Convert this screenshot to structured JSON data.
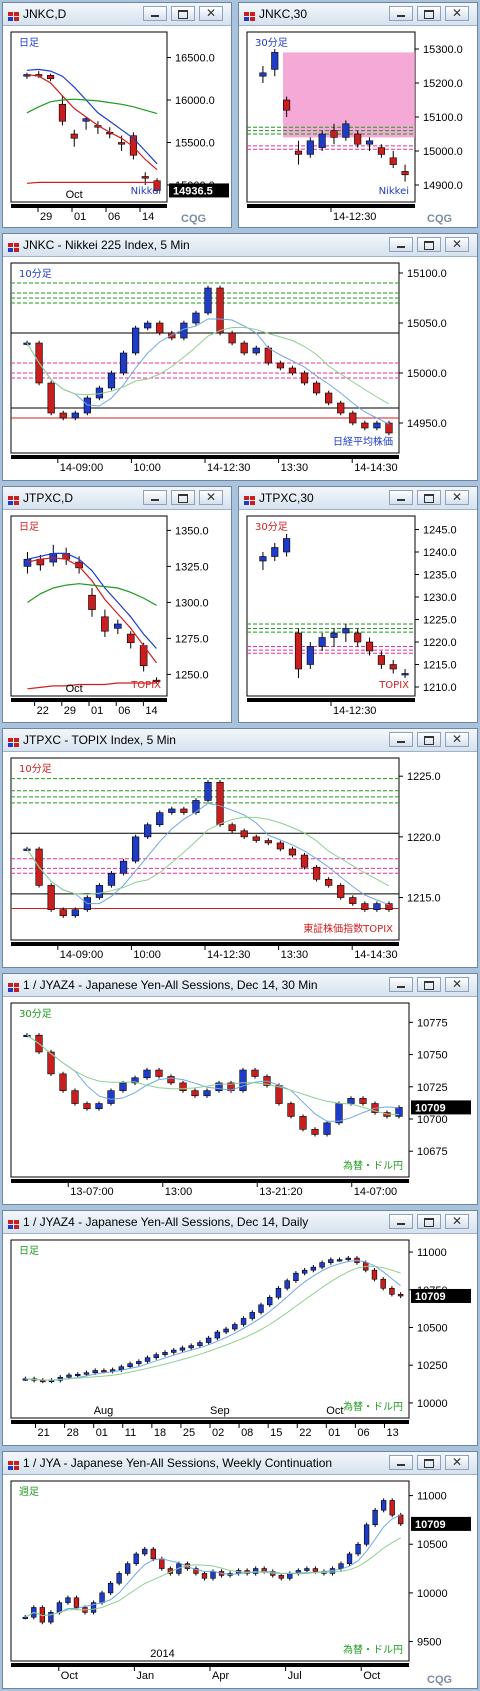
{
  "colors": {
    "up": "#1f3cc8",
    "down": "#c81e1e",
    "bg": "#ffffff",
    "green": "#1e9a1e",
    "blue": "#1f3cc8",
    "red": "#d21e1e",
    "pink": "#e8309a",
    "magenta_box": "#f08cc8",
    "black": "#000000",
    "gray": "#8a8a8a",
    "lightblue": "#6fa8e6",
    "lightgreen": "#8fd08f"
  },
  "cqg_logo": "CQG",
  "panels": [
    {
      "id": "p1",
      "title": "JNKC,D",
      "inner_label": "日足",
      "inner_label_color": "#1f3cc8",
      "bottom_label": "Nikkei",
      "bottom_label_color": "#1f3cc8",
      "yticks": [
        "16500.0",
        "16000.0",
        "15500.0",
        "15000.0"
      ],
      "price_tag": "14936.5",
      "xticks": [
        "29",
        "01",
        "06",
        "14"
      ],
      "xtick_upper": "Oct",
      "chart_data": {
        "type": "candlestick",
        "ylim": [
          14800,
          16800
        ],
        "candles": [
          [
            16280,
            16320,
            16250,
            16300
          ],
          [
            16300,
            16340,
            16260,
            16280
          ],
          [
            16290,
            16310,
            16220,
            16250
          ],
          [
            15950,
            16050,
            15700,
            15750
          ],
          [
            15600,
            15650,
            15450,
            15550
          ],
          [
            15750,
            15800,
            15650,
            15780
          ],
          [
            15700,
            15750,
            15600,
            15680
          ],
          [
            15620,
            15680,
            15550,
            15600
          ],
          [
            15500,
            15580,
            15400,
            15480
          ],
          [
            15580,
            15620,
            15300,
            15350
          ],
          [
            15100,
            15150,
            15000,
            15080
          ],
          [
            15050,
            15080,
            14900,
            14936
          ]
        ],
        "lines": [
          {
            "color": "#1f3cc8",
            "values": [
              16350,
              16360,
              16340,
              16280,
              16150,
              16000,
              15850,
              15750,
              15650,
              15550,
              15400,
              15250
            ]
          },
          {
            "color": "#d21e1e",
            "values": [
              16300,
              16280,
              16200,
              16050,
              15900,
              15800,
              15700,
              15620,
              15550,
              15450,
              15300,
              15180
            ]
          },
          {
            "color": "#1e9a1e",
            "values": [
              15850,
              15920,
              15980,
              16000,
              16010,
              16000,
              15990,
              15970,
              15950,
              15920,
              15880,
              15840
            ]
          },
          {
            "color": "#d21e1e",
            "values": [
              15020,
              15030,
              15030,
              15030,
              15030,
              15030,
              15030,
              15030,
              15030,
              15030,
              15030,
              15030
            ]
          }
        ]
      }
    },
    {
      "id": "p2",
      "title": "JNKC,30",
      "inner_label": "30分足",
      "inner_label_color": "#1f3cc8",
      "bottom_label": "Nikkei",
      "bottom_label_color": "#1f3cc8",
      "yticks": [
        "15300.0",
        "15200.0",
        "15100.0",
        "15000.0",
        "14900.0"
      ],
      "price_tag": "",
      "xticks": [
        "14-12:30"
      ],
      "xtick_upper": "",
      "chart_data": {
        "type": "candlestick",
        "ylim": [
          14850,
          15350
        ],
        "candles": [
          [
            15220,
            15250,
            15200,
            15230
          ],
          [
            15240,
            15300,
            15220,
            15290
          ],
          [
            15150,
            15160,
            15100,
            15120
          ],
          [
            15000,
            15030,
            14960,
            14990
          ],
          [
            14990,
            15040,
            14980,
            15030
          ],
          [
            15010,
            15060,
            15000,
            15050
          ],
          [
            15060,
            15080,
            15020,
            15040
          ],
          [
            15040,
            15090,
            15030,
            15080
          ],
          [
            15050,
            15060,
            15010,
            15020
          ],
          [
            15020,
            15040,
            15000,
            15030
          ],
          [
            15010,
            15020,
            14980,
            14990
          ],
          [
            14980,
            15000,
            14950,
            14960
          ],
          [
            14940,
            14960,
            14910,
            14930
          ]
        ],
        "levels": [
          {
            "y": 15070,
            "color": "#1e9a1e"
          },
          {
            "y": 15060,
            "color": "#1e9a1e"
          },
          {
            "y": 15050,
            "color": "#1e9a1e"
          },
          {
            "y": 15015,
            "color": "#e8309a"
          },
          {
            "y": 15005,
            "color": "#e8309a"
          }
        ],
        "box": {
          "y0": 15040,
          "y1": 15290
        }
      }
    },
    {
      "id": "p3",
      "title": "JNKC - Nikkei 225 Index, 5 Min",
      "inner_label": "10分足",
      "inner_label_color": "#1f3cc8",
      "bottom_label": "日経平均株価",
      "bottom_label_color": "#1f3cc8",
      "yticks": [
        "15100.0",
        "15050.0",
        "15000.0",
        "14950.0"
      ],
      "price_tag": "",
      "xticks": [
        "14-09:00",
        "10:00",
        "14-12:30",
        "13:30",
        "14-14:30"
      ],
      "xtick_upper": "",
      "chart_data": {
        "type": "candlestick",
        "ylim": [
          14920,
          15110
        ],
        "levels": [
          {
            "y": 15090,
            "color": "#1e9a1e"
          },
          {
            "y": 15080,
            "color": "#1e9a1e"
          },
          {
            "y": 15075,
            "color": "#1e9a1e"
          },
          {
            "y": 15070,
            "color": "#1e9a1e"
          },
          {
            "y": 15040,
            "color": "#000000"
          },
          {
            "y": 15010,
            "color": "#e8309a"
          },
          {
            "y": 15000,
            "color": "#e8309a"
          },
          {
            "y": 14995,
            "color": "#e8309a"
          },
          {
            "y": 14965,
            "color": "#000000"
          },
          {
            "y": 14955,
            "color": "#d21e1e"
          }
        ],
        "series": [
          15030,
          14990,
          14960,
          14955,
          14960,
          14975,
          14985,
          15000,
          15020,
          15045,
          15050,
          15040,
          15035,
          15050,
          15060,
          15085,
          15040,
          15030,
          15020,
          15025,
          15010,
          15005,
          15000,
          14990,
          14980,
          14970,
          14960,
          14950,
          14945,
          14950,
          14940
        ]
      }
    },
    {
      "id": "p4",
      "title": "JTPXC,D",
      "inner_label": "日足",
      "inner_label_color": "#d21e1e",
      "bottom_label": "TOPIX",
      "bottom_label_color": "#d21e1e",
      "yticks": [
        "1350.0",
        "1325.0",
        "1300.0",
        "1275.0",
        "1250.0"
      ],
      "price_tag": "",
      "xticks": [
        "22",
        "29",
        "01",
        "06",
        "14"
      ],
      "xtick_upper": "Oct",
      "chart_data": {
        "type": "candlestick",
        "ylim": [
          1235,
          1360
        ],
        "candles": [
          [
            1325,
            1335,
            1320,
            1330
          ],
          [
            1330,
            1333,
            1322,
            1326
          ],
          [
            1328,
            1340,
            1325,
            1334
          ],
          [
            1334,
            1338,
            1326,
            1330
          ],
          [
            1328,
            1332,
            1320,
            1324
          ],
          [
            1305,
            1310,
            1290,
            1295
          ],
          [
            1290,
            1295,
            1276,
            1280
          ],
          [
            1282,
            1288,
            1278,
            1285
          ],
          [
            1278,
            1280,
            1268,
            1272
          ],
          [
            1270,
            1272,
            1252,
            1256
          ],
          [
            1246,
            1248,
            1244,
            1245
          ]
        ],
        "lines": [
          {
            "color": "#1f3cc8",
            "values": [
              1330,
              1332,
              1334,
              1334,
              1330,
              1322,
              1310,
              1300,
              1290,
              1278,
              1268
            ]
          },
          {
            "color": "#d21e1e",
            "values": [
              1328,
              1330,
              1331,
              1330,
              1325,
              1315,
              1302,
              1292,
              1282,
              1270,
              1258
            ]
          },
          {
            "color": "#1e9a1e",
            "values": [
              1300,
              1306,
              1310,
              1312,
              1313,
              1312,
              1311,
              1310,
              1307,
              1303,
              1298
            ]
          },
          {
            "color": "#d21e1e",
            "values": [
              1240,
              1241,
              1242,
              1242,
              1243,
              1243,
              1243,
              1244,
              1244,
              1244,
              1244
            ]
          }
        ]
      }
    },
    {
      "id": "p5",
      "title": "JTPXC,30",
      "inner_label": "30分足",
      "inner_label_color": "#d21e1e",
      "bottom_label": "TOPIX",
      "bottom_label_color": "#d21e1e",
      "yticks": [
        "1245.0",
        "1240.0",
        "1235.0",
        "1230.0",
        "1225.0",
        "1220.0",
        "1215.0",
        "1210.0"
      ],
      "price_tag": "",
      "xticks": [
        "14-12:30"
      ],
      "xtick_upper": "",
      "chart_data": {
        "type": "candlestick",
        "ylim": [
          1208,
          1248
        ],
        "candles": [
          [
            1238,
            1240,
            1236,
            1239
          ],
          [
            1239,
            1242,
            1238,
            1241
          ],
          [
            1240,
            1244,
            1239,
            1243
          ],
          [
            1222,
            1223,
            1212,
            1214
          ],
          [
            1215,
            1220,
            1214,
            1219
          ],
          [
            1219,
            1222,
            1218,
            1221
          ],
          [
            1221,
            1223,
            1219,
            1222
          ],
          [
            1222,
            1224,
            1220,
            1223
          ],
          [
            1222,
            1223,
            1219,
            1220
          ],
          [
            1220,
            1221,
            1217,
            1218
          ],
          [
            1217,
            1218,
            1214,
            1215
          ],
          [
            1215,
            1216,
            1213,
            1214
          ],
          [
            1213,
            1214,
            1212,
            1213
          ]
        ],
        "levels": [
          {
            "y": 1224,
            "color": "#1e9a1e"
          },
          {
            "y": 1223,
            "color": "#1e9a1e"
          },
          {
            "y": 1222.2,
            "color": "#1e9a1e"
          },
          {
            "y": 1219,
            "color": "#e8309a"
          },
          {
            "y": 1218.2,
            "color": "#e8309a"
          },
          {
            "y": 1217.5,
            "color": "#e8309a"
          }
        ]
      }
    },
    {
      "id": "p6",
      "title": "JTPXC - TOPIX Index, 5 Min",
      "inner_label": "10分足",
      "inner_label_color": "#d21e1e",
      "bottom_label": "東証株価指数TOPIX",
      "bottom_label_color": "#d21e1e",
      "yticks": [
        "1225.0",
        "1220.0",
        "1215.0"
      ],
      "price_tag": "",
      "xticks": [
        "14-09:00",
        "10:00",
        "14-12:30",
        "13:30",
        "14-14:30"
      ],
      "xtick_upper": "",
      "chart_data": {
        "type": "candlestick",
        "ylim": [
          1211.5,
          1226.5
        ],
        "levels": [
          {
            "y": 1224.8,
            "color": "#1e9a1e"
          },
          {
            "y": 1223.8,
            "color": "#1e9a1e"
          },
          {
            "y": 1223.3,
            "color": "#1e9a1e"
          },
          {
            "y": 1222.8,
            "color": "#1e9a1e"
          },
          {
            "y": 1220.3,
            "color": "#000000"
          },
          {
            "y": 1218.2,
            "color": "#e8309a"
          },
          {
            "y": 1217.4,
            "color": "#e8309a"
          },
          {
            "y": 1217.0,
            "color": "#e8309a"
          },
          {
            "y": 1215.3,
            "color": "#000000"
          },
          {
            "y": 1214.1,
            "color": "#d21e1e"
          }
        ],
        "series": [
          1219,
          1216,
          1214,
          1213.5,
          1214,
          1215,
          1216,
          1217,
          1218,
          1220,
          1221,
          1222,
          1222.3,
          1222,
          1223,
          1224.5,
          1221,
          1220.5,
          1220,
          1219.7,
          1219.5,
          1219,
          1218.5,
          1217.5,
          1216.5,
          1216,
          1215,
          1214.5,
          1214,
          1214.5,
          1214
        ]
      }
    },
    {
      "id": "p7",
      "title": "1 / JYAZ4 - Japanese Yen-All Sessions, Dec 14, 30 Min",
      "inner_label": "30分足",
      "inner_label_color": "#1e9a1e",
      "bottom_label": "為替・ドル円",
      "bottom_label_color": "#1e9a1e",
      "yticks": [
        "10775",
        "10750",
        "10725",
        "10700",
        "10675"
      ],
      "price_tag": "10709",
      "xticks": [
        "13-07:00",
        "13:00",
        "13-21:20",
        "14-07:00"
      ],
      "xtick_upper": "",
      "chart_data": {
        "type": "candlestick",
        "ylim": [
          10655,
          10790
        ],
        "series": [
          10765,
          10752,
          10735,
          10722,
          10712,
          10708,
          10712,
          10722,
          10728,
          10732,
          10738,
          10733,
          10728,
          10722,
          10718,
          10722,
          10728,
          10722,
          10738,
          10733,
          10726,
          10712,
          10702,
          10692,
          10688,
          10697,
          10712,
          10716,
          10712,
          10705,
          10702,
          10709
        ]
      }
    },
    {
      "id": "p8",
      "title": "1 / JYAZ4 - Japanese Yen-All Sessions, Dec 14, Daily",
      "inner_label": "日足",
      "inner_label_color": "#1e9a1e",
      "bottom_label": "為替・ドル円",
      "bottom_label_color": "#1e9a1e",
      "yticks": [
        "11000",
        "10750",
        "10500",
        "10250",
        "10000"
      ],
      "price_tag": "10709",
      "xticks": [
        "21",
        "28",
        "01",
        "11",
        "18",
        "25",
        "02",
        "08",
        "15",
        "22",
        "01",
        "06",
        "13"
      ],
      "xtick_upper_list": [
        {
          "t": "Aug",
          "i": 2
        },
        {
          "t": "Sep",
          "i": 6
        },
        {
          "t": "Oct",
          "i": 10
        }
      ],
      "chart_data": {
        "type": "candlestick",
        "ylim": [
          9900,
          11080
        ],
        "series": [
          10160,
          10150,
          10145,
          10150,
          10170,
          10185,
          10190,
          10200,
          10215,
          10210,
          10220,
          10240,
          10260,
          10275,
          10300,
          10320,
          10335,
          10350,
          10365,
          10380,
          10400,
          10430,
          10470,
          10490,
          10520,
          10560,
          10600,
          10650,
          10700,
          10760,
          10810,
          10860,
          10880,
          10900,
          10930,
          10950,
          10950,
          10960,
          10930,
          10880,
          10820,
          10760,
          10720,
          10709
        ]
      }
    },
    {
      "id": "p9",
      "title": "1 / JYA - Japanese Yen-All Sessions, Weekly Continuation",
      "inner_label": "週足",
      "inner_label_color": "#1e9a1e",
      "bottom_label": "為替・ドル円",
      "bottom_label_color": "#1e9a1e",
      "yticks": [
        "11000",
        "10500",
        "10000",
        "9500"
      ],
      "price_tag": "10709",
      "xticks": [
        "Oct",
        "Jan",
        "Apr",
        "Jul",
        "Oct"
      ],
      "xtick_upper": "2014",
      "chart_data": {
        "type": "candlestick",
        "ylim": [
          9300,
          11150
        ],
        "series": [
          9750,
          9850,
          9700,
          9800,
          9900,
          9950,
          9850,
          9800,
          9900,
          10000,
          10100,
          10200,
          10300,
          10400,
          10450,
          10350,
          10250,
          10200,
          10300,
          10250,
          10200,
          10150,
          10220,
          10180,
          10200,
          10230,
          10200,
          10250,
          10220,
          10180,
          10150,
          10200,
          10230,
          10250,
          10220,
          10200,
          10250,
          10300,
          10400,
          10500,
          10700,
          10850,
          10950,
          10800,
          10709
        ]
      }
    }
  ]
}
